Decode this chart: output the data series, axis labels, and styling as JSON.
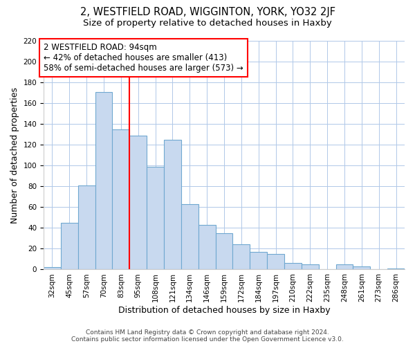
{
  "title": "2, WESTFIELD ROAD, WIGGINTON, YORK, YO32 2JF",
  "subtitle": "Size of property relative to detached houses in Haxby",
  "xlabel": "Distribution of detached houses by size in Haxby",
  "ylabel": "Number of detached properties",
  "bar_labels": [
    "32sqm",
    "45sqm",
    "57sqm",
    "70sqm",
    "83sqm",
    "95sqm",
    "108sqm",
    "121sqm",
    "134sqm",
    "146sqm",
    "159sqm",
    "172sqm",
    "184sqm",
    "197sqm",
    "210sqm",
    "222sqm",
    "235sqm",
    "248sqm",
    "261sqm",
    "273sqm",
    "286sqm"
  ],
  "bar_heights": [
    2,
    45,
    81,
    171,
    135,
    129,
    99,
    125,
    63,
    43,
    35,
    24,
    17,
    15,
    6,
    5,
    0,
    5,
    3,
    0,
    1
  ],
  "bar_color": "#c8d9ef",
  "bar_edge_color": "#6fa8d0",
  "ylim": [
    0,
    220
  ],
  "yticks": [
    0,
    20,
    40,
    60,
    80,
    100,
    120,
    140,
    160,
    180,
    200,
    220
  ],
  "property_line_x": 4.5,
  "annotation_line1": "2 WESTFIELD ROAD: 94sqm",
  "annotation_line2": "← 42% of detached houses are smaller (413)",
  "annotation_line3": "58% of semi-detached houses are larger (573) →",
  "footer1": "Contains HM Land Registry data © Crown copyright and database right 2024.",
  "footer2": "Contains public sector information licensed under the Open Government Licence v3.0.",
  "title_fontsize": 10.5,
  "subtitle_fontsize": 9.5,
  "axis_label_fontsize": 9,
  "tick_fontsize": 7.5,
  "annotation_fontsize": 8.5,
  "footer_fontsize": 6.5
}
